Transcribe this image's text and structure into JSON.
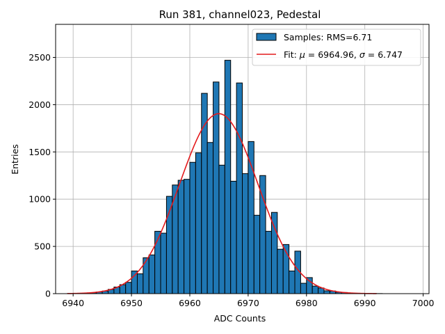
{
  "chart_data": {
    "type": "bar",
    "title": "Run 381, channel023, Pedestal",
    "xlabel": "ADC Counts",
    "ylabel": "Entries",
    "xlim": [
      6937,
      7001
    ],
    "ylim": [
      0,
      2850
    ],
    "xticks": [
      6940,
      6950,
      6960,
      6970,
      6980,
      6990,
      7000
    ],
    "yticks": [
      0,
      500,
      1000,
      1500,
      2000,
      2500
    ],
    "grid": true,
    "legend_position": "top-right",
    "bin_width": 1,
    "bins": {
      "x": [
        6939,
        6940,
        6941,
        6942,
        6943,
        6944,
        6945,
        6946,
        6947,
        6948,
        6949,
        6950,
        6951,
        6952,
        6953,
        6954,
        6955,
        6956,
        6957,
        6958,
        6959,
        6960,
        6961,
        6962,
        6963,
        6964,
        6965,
        6966,
        6967,
        6968,
        6969,
        6970,
        6971,
        6972,
        6973,
        6974,
        6975,
        6976,
        6977,
        6978,
        6979,
        6980,
        6981,
        6982,
        6983,
        6984,
        6985,
        6986,
        6987,
        6988,
        6989,
        6990,
        6991,
        6992
      ],
      "values": [
        1,
        2,
        4,
        6,
        10,
        18,
        28,
        45,
        70,
        95,
        120,
        240,
        210,
        380,
        410,
        660,
        640,
        1030,
        1150,
        1200,
        1210,
        1390,
        1490,
        2120,
        1600,
        2240,
        1360,
        2470,
        1190,
        2230,
        1270,
        1610,
        830,
        1250,
        660,
        860,
        470,
        520,
        240,
        450,
        110,
        170,
        80,
        60,
        30,
        28,
        15,
        12,
        6,
        4,
        3,
        2,
        1,
        1
      ]
    },
    "fit": {
      "mu": 6964.96,
      "sigma": 6.747,
      "amplitude": 1905,
      "x_range": [
        6939,
        6992
      ]
    },
    "legend": [
      {
        "label": "Samples: RMS=6.71",
        "kind": "patch"
      },
      {
        "label_prefix": "Fit: ",
        "mu_symbol": "μ",
        "mu_text": " = 6964.96, ",
        "sigma_symbol": "σ",
        "sigma_text": " = 6.747",
        "kind": "line"
      }
    ],
    "colors": {
      "bar_fill": "#1f77b4",
      "bar_edge": "#000000",
      "fit_line": "#e41a1c",
      "grid": "#b0b0b0"
    }
  }
}
